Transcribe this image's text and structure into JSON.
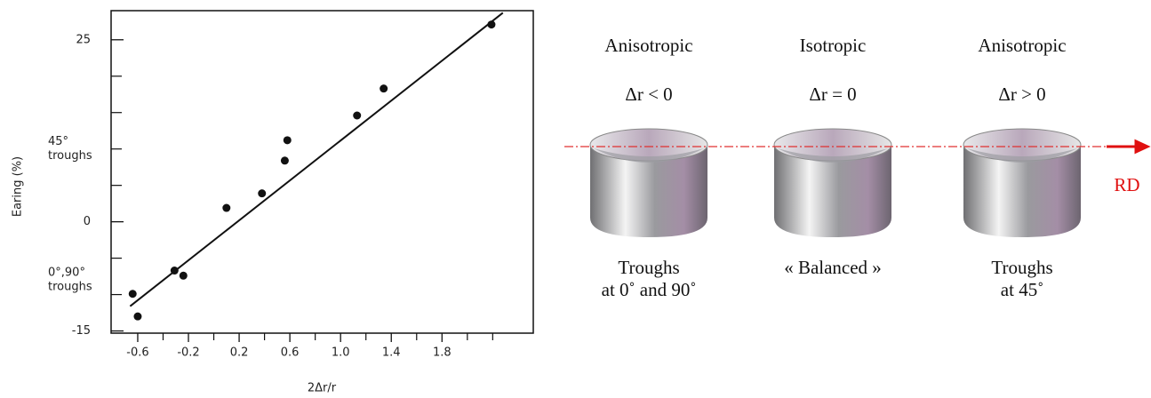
{
  "chart_data": {
    "type": "scatter",
    "x": [
      -0.64,
      -0.6,
      -0.31,
      -0.24,
      0.1,
      0.38,
      0.56,
      0.58,
      1.13,
      1.34,
      2.19
    ],
    "values": [
      -9.9,
      -13.0,
      -6.7,
      -7.4,
      1.9,
      3.9,
      8.4,
      11.2,
      14.6,
      18.3,
      27.1
    ],
    "color": "#111111",
    "fit_line": {
      "x": [
        -0.66,
        2.28
      ],
      "y": [
        -11.6,
        28.7
      ]
    },
    "xlim": [
      -0.81,
      2.52
    ],
    "ylim": [
      -15.3,
      29
    ],
    "xticks": [
      -0.6,
      -0.2,
      0.2,
      0.6,
      {
        "value": 1,
        "label": "1.0"
      },
      1.4,
      1.8
    ],
    "xminorticks": [
      -0.4,
      0,
      0.4,
      0.8,
      1.2,
      1.6,
      2.0,
      2.2
    ],
    "yticks": [
      -15,
      0,
      25
    ],
    "yminorticks": [
      -10,
      -5,
      5,
      10,
      15,
      20
    ],
    "xlabel": "2Δr/r",
    "ylabel": "Earing  (%)",
    "annotations": [
      {
        "lines": [
          "45°",
          "troughs"
        ],
        "y": 10
      },
      {
        "lines": [
          "0°,90°",
          "troughs"
        ],
        "y": -8
      }
    ]
  },
  "diagram": {
    "columns": [
      {
        "title": "Anisotropic",
        "condition": "Δr < 0",
        "caption": [
          "Troughs",
          "at 0˚ and 90˚"
        ]
      },
      {
        "title": "Isotropic",
        "condition": "Δr = 0",
        "caption": [
          "« Balanced »"
        ]
      },
      {
        "title": "Anisotropic",
        "condition": "Δr > 0",
        "caption": [
          "Troughs",
          "at 45˚"
        ]
      }
    ],
    "direction_label": "RD"
  }
}
